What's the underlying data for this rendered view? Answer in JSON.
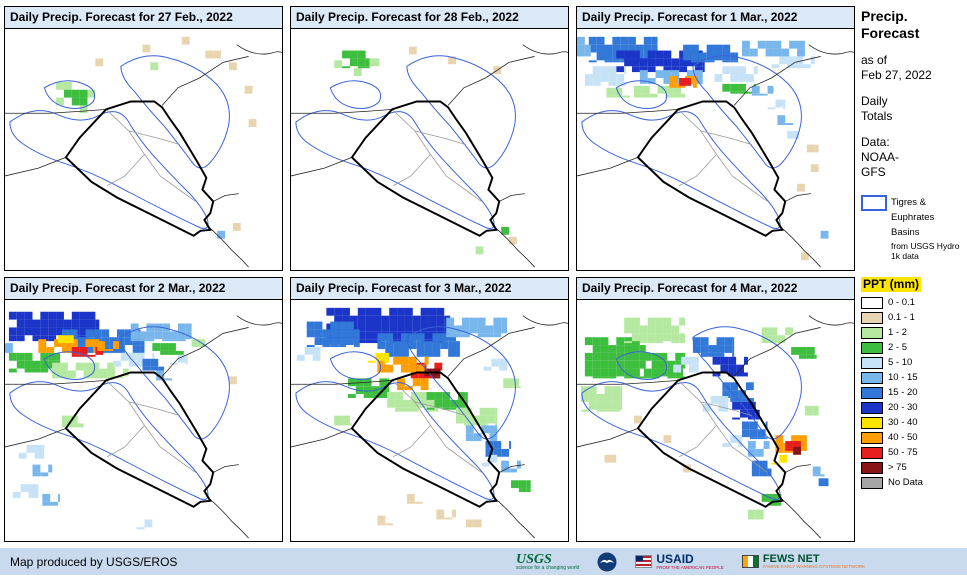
{
  "panels": [
    {
      "title": "Daily Precip. Forecast for 27 Feb., 2022",
      "patches": [
        [
          52,
          54,
          16,
          8,
          2
        ],
        [
          60,
          62,
          24,
          16,
          3
        ],
        [
          52,
          70,
          8,
          8,
          2
        ],
        [
          84,
          62,
          8,
          8,
          2
        ],
        [
          76,
          78,
          8,
          8,
          2
        ],
        [
          92,
          30,
          8,
          8,
          1
        ],
        [
          140,
          16,
          8,
          8,
          1
        ],
        [
          204,
          22,
          16,
          8,
          1
        ],
        [
          228,
          34,
          8,
          8,
          1
        ],
        [
          244,
          58,
          8,
          8,
          1
        ],
        [
          248,
          92,
          8,
          8,
          1
        ],
        [
          216,
          206,
          8,
          8,
          5
        ],
        [
          232,
          198,
          8,
          8,
          1
        ],
        [
          148,
          34,
          8,
          8,
          2
        ],
        [
          180,
          8,
          8,
          8,
          1
        ]
      ]
    },
    {
      "title": "Daily Precip. Forecast for 28 Feb., 2022",
      "patches": [
        [
          52,
          22,
          28,
          18,
          3
        ],
        [
          80,
          30,
          10,
          8,
          2
        ],
        [
          44,
          32,
          8,
          8,
          2
        ],
        [
          120,
          18,
          8,
          8,
          1
        ],
        [
          206,
          38,
          8,
          8,
          1
        ],
        [
          214,
          202,
          8,
          8,
          3
        ],
        [
          222,
          212,
          8,
          8,
          1
        ],
        [
          188,
          222,
          8,
          8,
          2
        ],
        [
          64,
          40,
          8,
          8,
          2
        ],
        [
          160,
          28,
          8,
          8,
          1
        ]
      ]
    },
    {
      "title": "Daily Precip. Forecast for 1 Mar., 2022",
      "patches": [
        [
          12,
          8,
          70,
          26,
          6
        ],
        [
          40,
          22,
          90,
          22,
          7
        ],
        [
          108,
          16,
          56,
          18,
          6
        ],
        [
          64,
          42,
          64,
          14,
          5
        ],
        [
          8,
          38,
          42,
          20,
          4
        ],
        [
          140,
          38,
          44,
          16,
          4
        ],
        [
          58,
          58,
          52,
          12,
          2
        ],
        [
          148,
          56,
          34,
          10,
          3
        ],
        [
          94,
          48,
          28,
          12,
          9
        ],
        [
          104,
          50,
          12,
          8,
          10
        ],
        [
          168,
          12,
          64,
          16,
          5
        ],
        [
          198,
          28,
          44,
          12,
          4
        ],
        [
          178,
          58,
          22,
          10,
          5
        ],
        [
          194,
          72,
          18,
          10,
          4
        ],
        [
          204,
          88,
          16,
          10,
          5
        ],
        [
          214,
          104,
          12,
          8,
          4
        ],
        [
          234,
          118,
          12,
          8,
          1
        ],
        [
          238,
          138,
          8,
          8,
          1
        ],
        [
          224,
          158,
          8,
          8,
          1
        ],
        [
          248,
          206,
          8,
          8,
          5
        ],
        [
          228,
          228,
          8,
          8,
          1
        ],
        [
          30,
          60,
          24,
          10,
          2
        ],
        [
          0,
          8,
          14,
          20,
          5
        ]
      ]
    },
    {
      "title": "Daily Precip. Forecast for 2 Mar., 2022",
      "patches": [
        [
          4,
          12,
          92,
          30,
          7
        ],
        [
          58,
          30,
          84,
          24,
          6
        ],
        [
          128,
          24,
          62,
          18,
          5
        ],
        [
          34,
          40,
          62,
          14,
          9
        ],
        [
          68,
          48,
          32,
          10,
          10
        ],
        [
          94,
          42,
          22,
          10,
          9
        ],
        [
          54,
          36,
          16,
          8,
          8
        ],
        [
          4,
          54,
          52,
          20,
          3
        ],
        [
          48,
          64,
          64,
          16,
          2
        ],
        [
          110,
          54,
          42,
          14,
          4
        ],
        [
          150,
          44,
          32,
          12,
          3
        ],
        [
          140,
          60,
          22,
          12,
          6
        ],
        [
          154,
          72,
          16,
          10,
          5
        ],
        [
          14,
          148,
          26,
          14,
          4
        ],
        [
          28,
          168,
          20,
          12,
          5
        ],
        [
          8,
          188,
          26,
          14,
          4
        ],
        [
          38,
          198,
          18,
          12,
          5
        ],
        [
          58,
          118,
          22,
          12,
          2
        ],
        [
          228,
          78,
          8,
          8,
          1
        ],
        [
          134,
          224,
          16,
          10,
          4
        ],
        [
          96,
          70,
          30,
          10,
          2
        ],
        [
          168,
          56,
          18,
          10,
          4
        ],
        [
          190,
          40,
          14,
          8,
          2
        ],
        [
          0,
          44,
          8,
          10,
          5
        ]
      ]
    },
    {
      "title": "Daily Precip. Forecast for 3 Mar., 2022",
      "patches": [
        [
          36,
          8,
          126,
          36,
          7
        ],
        [
          88,
          34,
          84,
          24,
          6
        ],
        [
          16,
          22,
          54,
          26,
          6
        ],
        [
          158,
          18,
          62,
          20,
          5
        ],
        [
          122,
          64,
          32,
          16,
          10
        ],
        [
          136,
          70,
          16,
          10,
          11
        ],
        [
          88,
          58,
          52,
          16,
          9
        ],
        [
          108,
          80,
          32,
          12,
          9
        ],
        [
          78,
          54,
          22,
          10,
          8
        ],
        [
          58,
          80,
          42,
          20,
          3
        ],
        [
          98,
          94,
          52,
          20,
          2
        ],
        [
          138,
          94,
          42,
          18,
          3
        ],
        [
          168,
          110,
          42,
          18,
          2
        ],
        [
          178,
          128,
          32,
          16,
          5
        ],
        [
          198,
          144,
          26,
          16,
          6
        ],
        [
          214,
          164,
          20,
          12,
          5
        ],
        [
          194,
          158,
          16,
          12,
          4
        ],
        [
          224,
          184,
          20,
          12,
          3
        ],
        [
          118,
          198,
          16,
          10,
          1
        ],
        [
          148,
          214,
          20,
          10,
          1
        ],
        [
          88,
          220,
          16,
          10,
          1
        ],
        [
          178,
          224,
          16,
          8,
          1
        ],
        [
          6,
          48,
          24,
          14,
          4
        ],
        [
          196,
          60,
          24,
          12,
          4
        ],
        [
          216,
          80,
          18,
          10,
          2
        ],
        [
          44,
          118,
          18,
          10,
          2
        ]
      ]
    },
    {
      "title": "Daily Precip. Forecast for 4 Mar., 2022",
      "patches": [
        [
          8,
          38,
          62,
          42,
          3
        ],
        [
          48,
          18,
          62,
          26,
          2
        ],
        [
          68,
          54,
          42,
          26,
          3
        ],
        [
          4,
          88,
          42,
          26,
          2
        ],
        [
          118,
          38,
          42,
          20,
          6
        ],
        [
          138,
          58,
          36,
          20,
          7
        ],
        [
          148,
          84,
          32,
          20,
          6
        ],
        [
          158,
          104,
          28,
          18,
          7
        ],
        [
          168,
          124,
          26,
          18,
          6
        ],
        [
          174,
          144,
          22,
          16,
          5
        ],
        [
          178,
          164,
          20,
          16,
          6
        ],
        [
          98,
          58,
          26,
          16,
          4
        ],
        [
          128,
          98,
          26,
          16,
          4
        ],
        [
          148,
          138,
          20,
          12,
          4
        ],
        [
          202,
          138,
          32,
          18,
          9
        ],
        [
          212,
          144,
          16,
          10,
          10
        ],
        [
          220,
          150,
          8,
          8,
          11
        ],
        [
          198,
          158,
          16,
          10,
          8
        ],
        [
          188,
          28,
          32,
          16,
          2
        ],
        [
          218,
          48,
          26,
          12,
          3
        ],
        [
          88,
          138,
          8,
          8,
          1
        ],
        [
          58,
          118,
          8,
          8,
          1
        ],
        [
          108,
          168,
          8,
          8,
          1
        ],
        [
          188,
          198,
          20,
          12,
          3
        ],
        [
          174,
          214,
          16,
          10,
          2
        ],
        [
          28,
          158,
          12,
          8,
          1
        ],
        [
          232,
          108,
          14,
          10,
          2
        ],
        [
          240,
          170,
          12,
          10,
          5
        ],
        [
          246,
          182,
          10,
          8,
          6
        ]
      ]
    }
  ],
  "sidebar": {
    "title_line1": "Precip.",
    "title_line2": "Forecast",
    "as_of_label": "as of",
    "as_of_date": "Feb 27, 2022",
    "daily_line1": "Daily",
    "daily_line2": "Totals",
    "data_label": "Data:",
    "data_line1": "NOAA-",
    "data_line2": "GFS",
    "basins_label": "Tigres & Euphrates Basins",
    "basins_note": "from USGS Hydro 1k data",
    "legend_title": "PPT (mm)",
    "legend": [
      {
        "label": "0 - 0.1",
        "color": "#FFFFFF"
      },
      {
        "label": "0.1 - 1",
        "color": "#E8D5B0"
      },
      {
        "label": "1 - 2",
        "color": "#B5E8A0"
      },
      {
        "label": "2 - 5",
        "color": "#3EBE3E"
      },
      {
        "label": "5 - 10",
        "color": "#C6E2F7"
      },
      {
        "label": "10 - 15",
        "color": "#79B6EC"
      },
      {
        "label": "15 - 20",
        "color": "#3178D8"
      },
      {
        "label": "20 - 30",
        "color": "#1A35C8"
      },
      {
        "label": "30 - 40",
        "color": "#FFE400"
      },
      {
        "label": "40 - 50",
        "color": "#FF9E00"
      },
      {
        "label": "50 - 75",
        "color": "#E81E1E"
      },
      {
        "label": "> 75",
        "color": "#891414"
      },
      {
        "label": "No Data",
        "color": "#A6A6A6"
      }
    ]
  },
  "footer": {
    "credit": "Map produced by USGS/EROS",
    "logos": [
      {
        "name": "USGS",
        "tagline": "science for a changing world"
      },
      {
        "name": "NOAA"
      },
      {
        "name": "USAID",
        "tagline": "FROM THE AMERICAN PEOPLE"
      },
      {
        "name": "FEWS NET",
        "tagline": "FAMINE EARLY WARNING SYSTEMS NETWORK"
      }
    ]
  }
}
